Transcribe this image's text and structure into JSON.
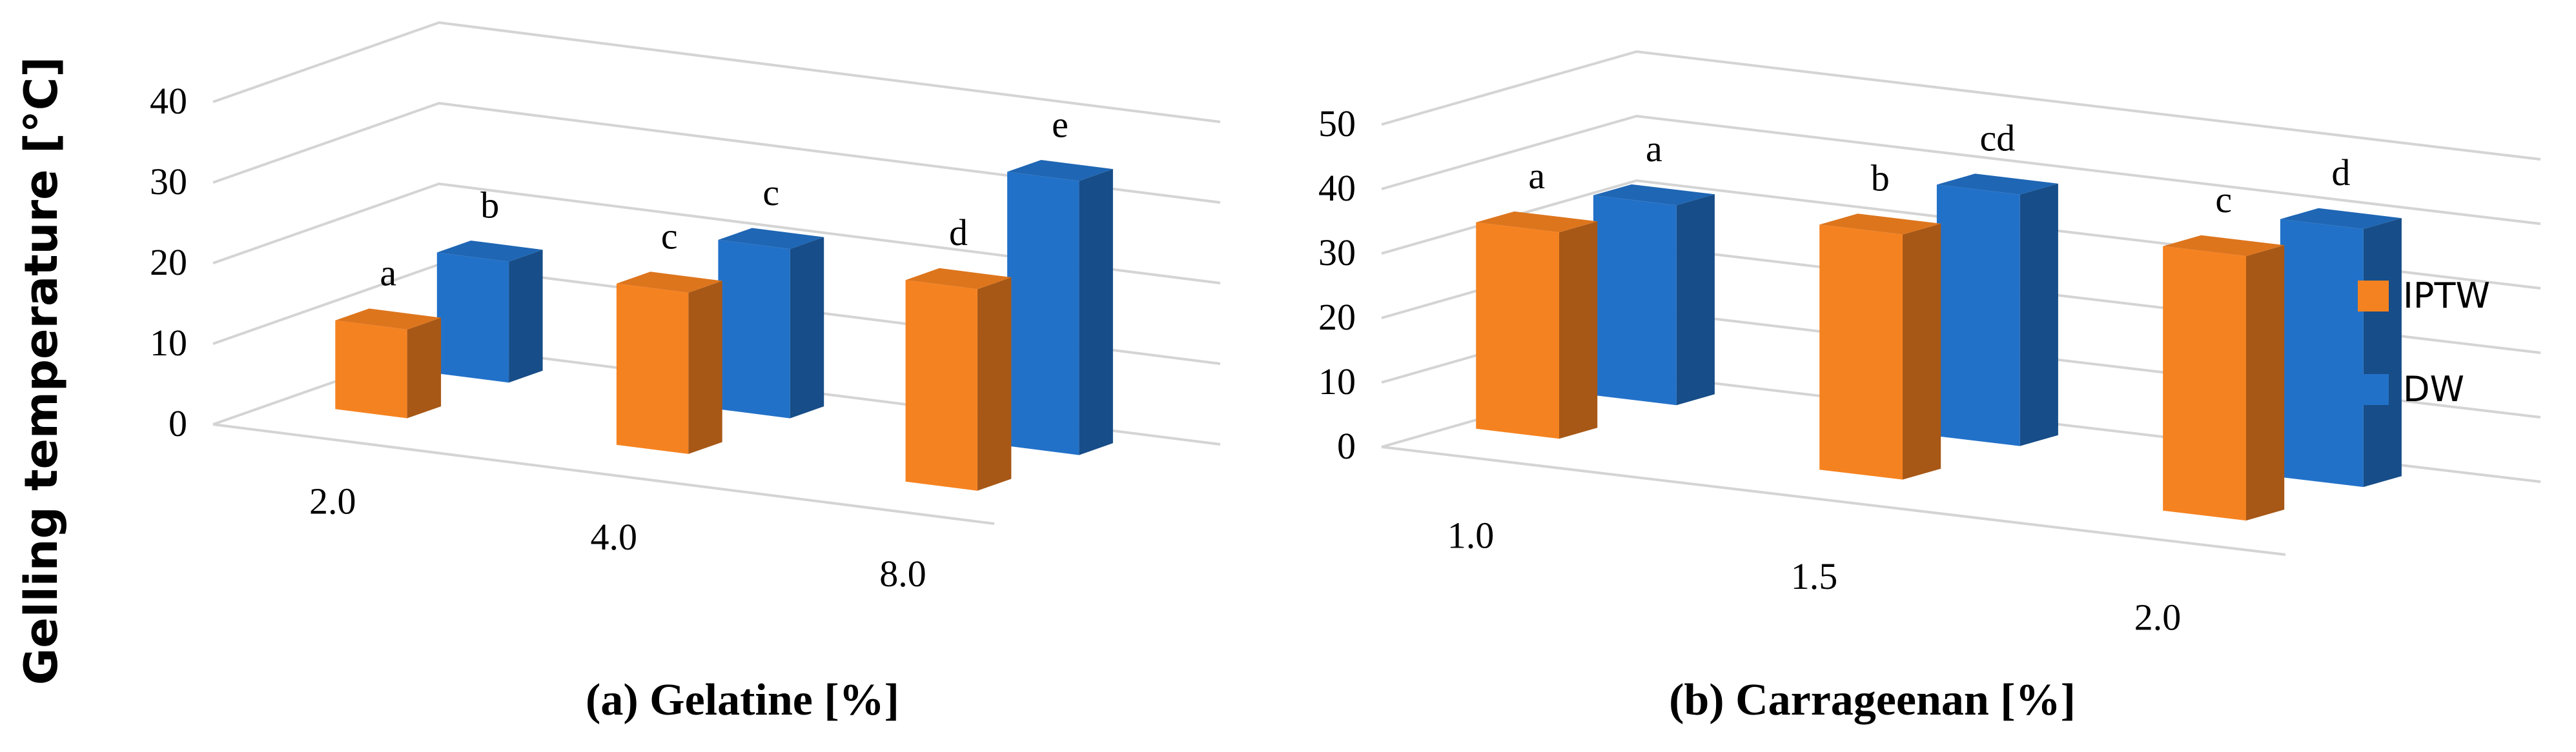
{
  "y_axis_title": "Gelling temperature [°C]",
  "colors": {
    "IPTW": "#F58220",
    "DW": "#2271C8"
  },
  "legend": [
    {
      "name": "IPTW",
      "color": "#F58220"
    },
    {
      "name": "DW",
      "color": "#2271C8"
    }
  ],
  "chart_data": [
    {
      "type": "bar",
      "title": "",
      "xlabel": "(a) Gelatine [%]",
      "ylabel": "Gelling temperature [°C]",
      "categories": [
        "2.0",
        "4.0",
        "8.0"
      ],
      "yticks": [
        "0",
        "10",
        "20",
        "30",
        "40"
      ],
      "ylim": [
        0,
        40
      ],
      "grid": true,
      "series": [
        {
          "name": "IPTW",
          "values": [
            11,
            20,
            25
          ],
          "labels": [
            "a",
            "c",
            "d"
          ]
        },
        {
          "name": "DW",
          "values": [
            15,
            21,
            34
          ],
          "labels": [
            "b",
            "c",
            "e"
          ]
        }
      ]
    },
    {
      "type": "bar",
      "title": "",
      "xlabel": "(b) Carrageenan [%]",
      "ylabel": "Gelling temperature [°C]",
      "categories": [
        "1.0",
        "1.5",
        "2.0"
      ],
      "yticks": [
        "0",
        "10",
        "20",
        "30",
        "40",
        "50"
      ],
      "ylim": [
        0,
        50
      ],
      "grid": true,
      "legend_position": "right",
      "series": [
        {
          "name": "IPTW",
          "values": [
            32,
            38,
            41
          ],
          "labels": [
            "a",
            "b",
            "c"
          ]
        },
        {
          "name": "DW",
          "values": [
            31,
            39,
            40
          ],
          "labels": [
            "a",
            "cd",
            "d"
          ]
        }
      ]
    }
  ]
}
